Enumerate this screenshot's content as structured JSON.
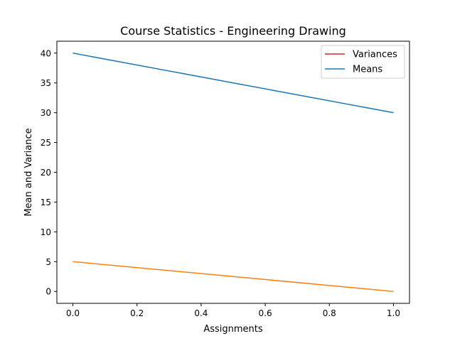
{
  "chart_data": {
    "type": "line",
    "title": "Course Statistics - Engineering Drawing",
    "xlabel": "Assignments",
    "ylabel": "Mean and Variance",
    "xlim": [
      -0.05,
      1.05
    ],
    "ylim": [
      -2,
      42
    ],
    "xticks": [
      "0.0",
      "0.2",
      "0.4",
      "0.6",
      "0.8",
      "1.0"
    ],
    "yticks": [
      "0",
      "5",
      "10",
      "15",
      "20",
      "25",
      "30",
      "35",
      "40"
    ],
    "grid": false,
    "legend_position": "top-right",
    "legend": [
      {
        "label": "Variances",
        "color": "#d62728"
      },
      {
        "label": "Means",
        "color": "#1f77b4"
      }
    ],
    "series": [
      {
        "x": [
          0.0,
          1.0
        ],
        "values": [
          40,
          30
        ],
        "color": "#1f77b4"
      },
      {
        "x": [
          0.0,
          1.0
        ],
        "values": [
          5,
          0
        ],
        "color": "#ff7f0e"
      }
    ]
  }
}
